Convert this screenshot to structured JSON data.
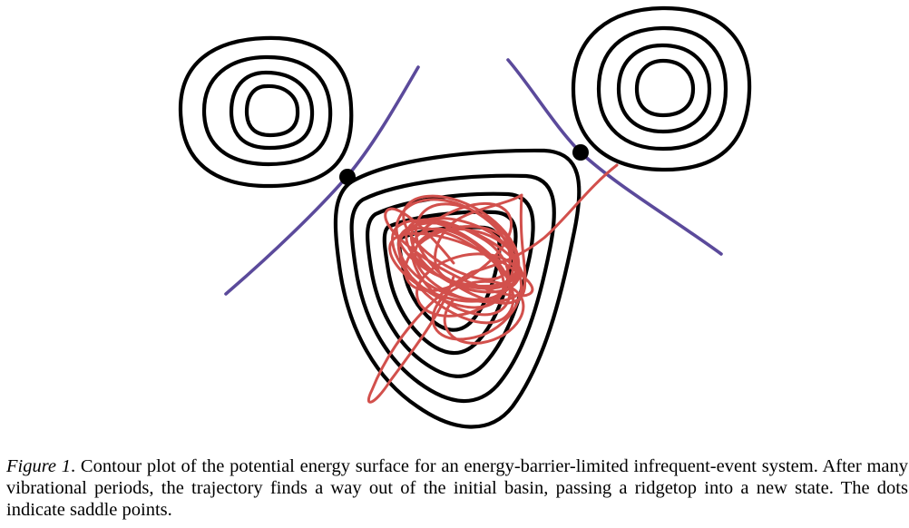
{
  "figure": {
    "label": "Figure 1",
    "caption": ". Contour plot of the potential energy surface for an energy-barrier-limited infrequent-event system. After many vibrational periods, the trajectory finds a way out of the initial basin, passing a ridgetop into a new state. The dots indicate saddle points.",
    "colors": {
      "contour": "#000000",
      "ridge_line": "#5b4a9b",
      "trajectory": "#d2504c",
      "saddle_point": "#000000"
    }
  }
}
